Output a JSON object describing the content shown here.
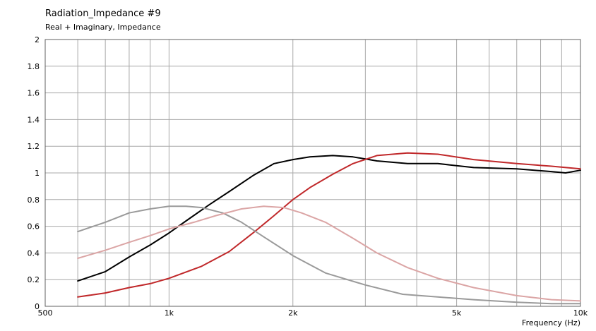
{
  "chart_data": {
    "type": "line",
    "title": "Radiation_Impedance #9",
    "subtitle": "Real + Imaginary, Impedance",
    "xlabel": "Frequency  (Hz)",
    "ylabel": "",
    "xscale": "log",
    "xlim": [
      500,
      10000
    ],
    "ylim": [
      0,
      2
    ],
    "grid": true,
    "x_ticks": [
      {
        "value": 500,
        "label": "500"
      },
      {
        "value": 1000,
        "label": "1k"
      },
      {
        "value": 2000,
        "label": "2k"
      },
      {
        "value": 5000,
        "label": "5k"
      },
      {
        "value": 10000,
        "label": "10k"
      }
    ],
    "y_ticks": [
      {
        "value": 0,
        "label": "0"
      },
      {
        "value": 0.2,
        "label": "0.2"
      },
      {
        "value": 0.4,
        "label": "0.4"
      },
      {
        "value": 0.6,
        "label": "0.6"
      },
      {
        "value": 0.8,
        "label": "0.8"
      },
      {
        "value": 1,
        "label": "1"
      },
      {
        "value": 1.2,
        "label": "1.2"
      },
      {
        "value": 1.4,
        "label": "1.4"
      },
      {
        "value": 1.6,
        "label": "1.6"
      },
      {
        "value": 1.8,
        "label": "1.8"
      },
      {
        "value": 2,
        "label": "2"
      }
    ],
    "series": [
      {
        "color": "#000000",
        "x": [
          600,
          700,
          800,
          900,
          1000,
          1100,
          1250,
          1400,
          1600,
          1800,
          2000,
          2200,
          2500,
          2800,
          3200,
          3800,
          4500,
          5500,
          7000,
          8500,
          9200,
          10000
        ],
        "y": [
          0.19,
          0.26,
          0.37,
          0.46,
          0.55,
          0.64,
          0.76,
          0.86,
          0.98,
          1.07,
          1.1,
          1.12,
          1.13,
          1.12,
          1.09,
          1.07,
          1.07,
          1.04,
          1.03,
          1.01,
          1.0,
          1.02
        ]
      },
      {
        "color": "#c0282a",
        "x": [
          600,
          700,
          800,
          900,
          1000,
          1200,
          1400,
          1600,
          1800,
          2000,
          2200,
          2500,
          2800,
          3200,
          3800,
          4500,
          5500,
          7000,
          8500,
          10000
        ],
        "y": [
          0.07,
          0.1,
          0.14,
          0.17,
          0.21,
          0.3,
          0.41,
          0.55,
          0.68,
          0.8,
          0.89,
          0.99,
          1.07,
          1.13,
          1.15,
          1.14,
          1.1,
          1.07,
          1.05,
          1.03
        ]
      },
      {
        "color": "#9a9a9a",
        "x": [
          600,
          700,
          800,
          900,
          1000,
          1100,
          1200,
          1350,
          1500,
          1700,
          2000,
          2400,
          3000,
          3700,
          4500,
          5500,
          7000,
          8500,
          10000
        ],
        "y": [
          0.56,
          0.63,
          0.7,
          0.73,
          0.75,
          0.75,
          0.74,
          0.7,
          0.63,
          0.52,
          0.38,
          0.25,
          0.16,
          0.09,
          0.07,
          0.05,
          0.03,
          0.02,
          0.02
        ]
      },
      {
        "color": "#dba5a5",
        "x": [
          600,
          700,
          800,
          900,
          1000,
          1150,
          1300,
          1500,
          1700,
          1900,
          2100,
          2400,
          2800,
          3200,
          3800,
          4500,
          5500,
          7000,
          8500,
          10000
        ],
        "y": [
          0.36,
          0.42,
          0.48,
          0.53,
          0.58,
          0.63,
          0.68,
          0.73,
          0.75,
          0.74,
          0.7,
          0.63,
          0.51,
          0.4,
          0.29,
          0.21,
          0.14,
          0.08,
          0.05,
          0.04
        ]
      }
    ]
  }
}
